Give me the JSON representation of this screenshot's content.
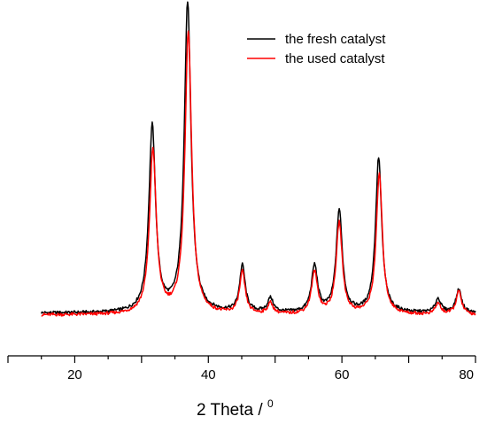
{
  "chart_data": {
    "type": "line",
    "xlabel": "2 Theta / ",
    "xlabel_superscript": "0",
    "xlim": [
      10,
      80
    ],
    "xticks": [
      20,
      40,
      60,
      80
    ],
    "ylim": [
      0,
      100
    ],
    "grid": false,
    "legend_placement": "top-right",
    "series": [
      {
        "name": "the fresh catalyst",
        "color": "#000000",
        "peaks": [
          {
            "x": 31.6,
            "height": 60.0,
            "width": 0.6
          },
          {
            "x": 36.9,
            "height": 100.0,
            "width": 0.6
          },
          {
            "x": 45.1,
            "height": 15.0,
            "width": 0.5
          },
          {
            "x": 49.3,
            "height": 4.5,
            "width": 0.5
          },
          {
            "x": 55.9,
            "height": 15.0,
            "width": 0.55
          },
          {
            "x": 59.6,
            "height": 33.0,
            "width": 0.55
          },
          {
            "x": 65.5,
            "height": 50.0,
            "width": 0.55
          },
          {
            "x": 74.4,
            "height": 4.5,
            "width": 0.5
          },
          {
            "x": 77.5,
            "height": 7.5,
            "width": 0.5
          }
        ],
        "baseline": 0.6
      },
      {
        "name": "the used catalyst",
        "color": "#ff0000",
        "peaks": [
          {
            "x": 31.7,
            "height": 53.0,
            "width": 0.6
          },
          {
            "x": 37.0,
            "height": 91.0,
            "width": 0.6
          },
          {
            "x": 45.1,
            "height": 13.5,
            "width": 0.5
          },
          {
            "x": 49.3,
            "height": 3.5,
            "width": 0.5
          },
          {
            "x": 55.9,
            "height": 13.5,
            "width": 0.55
          },
          {
            "x": 59.6,
            "height": 29.5,
            "width": 0.55
          },
          {
            "x": 65.6,
            "height": 45.5,
            "width": 0.55
          },
          {
            "x": 74.4,
            "height": 3.5,
            "width": 0.5
          },
          {
            "x": 77.5,
            "height": 7.5,
            "width": 0.5
          }
        ],
        "baseline": 0.0
      }
    ],
    "x_start": 15,
    "x_end": 80
  }
}
